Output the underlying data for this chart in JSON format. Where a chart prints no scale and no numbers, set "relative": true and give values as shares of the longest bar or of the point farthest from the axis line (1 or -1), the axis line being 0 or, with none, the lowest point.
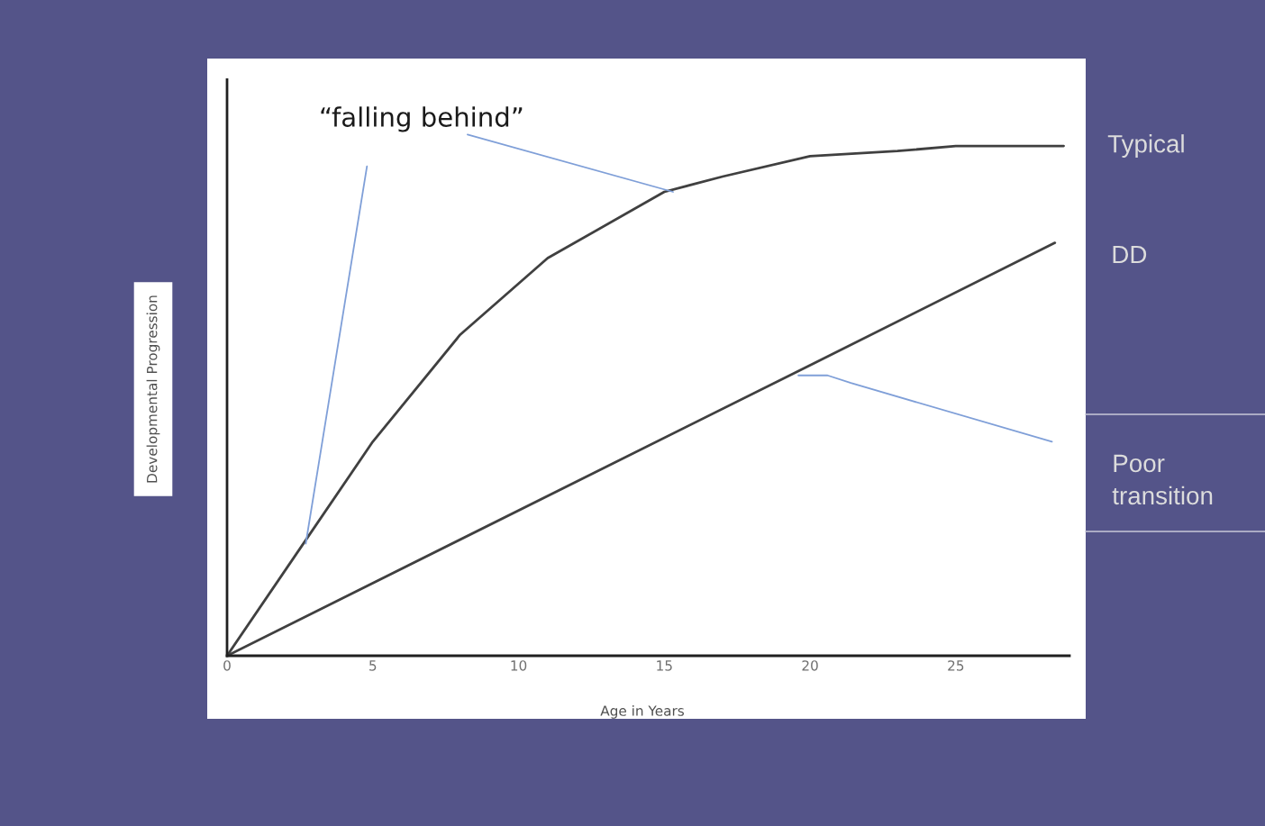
{
  "chart_data": {
    "type": "line",
    "xlabel": "Age in Years",
    "ylabel": "Developmental Progression",
    "relative": true,
    "xlim": [
      0,
      28.9
    ],
    "xticks": [
      0,
      5,
      10,
      15,
      20,
      25
    ],
    "grid": false,
    "legend": false,
    "marker": "none",
    "line_style": "solid",
    "tick_labels": "x",
    "series": [
      {
        "name": "Typical",
        "color": "#404040",
        "x": [
          0,
          2.5,
          5,
          8,
          11,
          15,
          17,
          20,
          23,
          25,
          28.7
        ],
        "values": [
          0,
          0.21,
          0.42,
          0.63,
          0.78,
          0.91,
          0.94,
          0.98,
          0.99,
          1.0,
          1.0
        ]
      },
      {
        "name": "DD",
        "color": "#404040",
        "x": [
          0,
          20,
          28.4
        ],
        "values": [
          0,
          0.57,
          0.81
        ]
      },
      {
        "name": "Poor transition",
        "color": "#7f9fd8",
        "x": [
          19.6,
          20.6,
          21.4,
          28.3
        ],
        "values": [
          0.55,
          0.55,
          0.535,
          0.42
        ]
      },
      {
        "color": "#7f9fd8",
        "x": [
          2.7,
          4.8
        ],
        "values": [
          0.22,
          0.96
        ]
      }
    ],
    "annotations": [
      {
        "text": "“falling behind”",
        "x": 15.3,
        "y": 0.91
      }
    ]
  }
}
